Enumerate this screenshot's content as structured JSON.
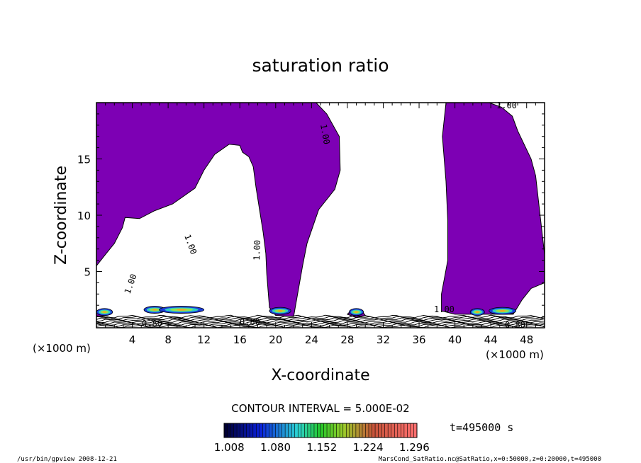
{
  "chart_data": {
    "type": "heatmap",
    "title": "saturation ratio",
    "xlabel": "X-coordinate",
    "ylabel": "Z-coordinate",
    "x_unit": "(×1000 m)",
    "y_unit": "(×1000 m)",
    "xlim": [
      0,
      50
    ],
    "ylim": [
      0,
      20
    ],
    "xticks": [
      4,
      8,
      12,
      16,
      20,
      24,
      28,
      32,
      36,
      40,
      44,
      48
    ],
    "yticks": [
      5,
      10,
      15
    ],
    "contour_label": "1.00",
    "contour_label_bottom": "0.80",
    "contour_interval": "CONTOUR INTERVAL = 5.000E-02",
    "time": "t=495000 s",
    "colorbar": {
      "ticks": [
        "1.008",
        "1.080",
        "1.152",
        "1.224",
        "1.296"
      ],
      "range": [
        1.0,
        1.3
      ]
    },
    "colors": {
      "fill": "#7d00b4",
      "line": "#000000"
    }
  },
  "footer": {
    "left": "/usr/bin/gpview   2008-12-21",
    "right": "MarsCond_SatRatio.nc@SatRatio,x=0:50000,z=0:20000,t=495000"
  }
}
